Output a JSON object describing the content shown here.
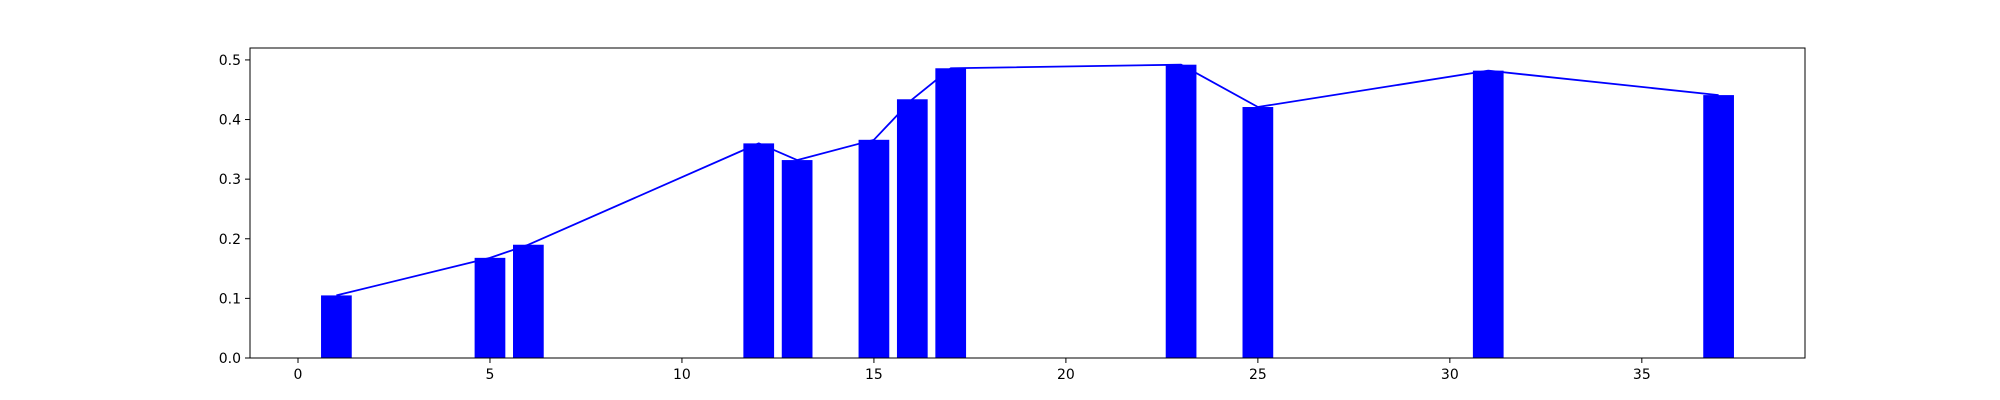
{
  "chart_data": {
    "type": "bar",
    "title": "",
    "xlabel": "",
    "ylabel": "",
    "xlim": [
      -1.25,
      39.25
    ],
    "ylim": [
      0,
      0.52
    ],
    "xticks": [
      0,
      5,
      10,
      15,
      20,
      25,
      30,
      35
    ],
    "xtick_labels": [
      "0",
      "5",
      "10",
      "15",
      "20",
      "25",
      "30",
      "35"
    ],
    "yticks": [
      0.0,
      0.1,
      0.2,
      0.3,
      0.4,
      0.5
    ],
    "ytick_labels": [
      "0.0",
      "0.1",
      "0.2",
      "0.3",
      "0.4",
      "0.5"
    ],
    "grid": false,
    "bar_width": 0.8,
    "x": [
      1,
      5,
      6,
      12,
      13,
      15,
      16,
      17,
      23,
      25,
      31,
      37
    ],
    "values": [
      0.105,
      0.168,
      0.19,
      0.36,
      0.332,
      0.366,
      0.434,
      0.486,
      0.492,
      0.421,
      0.482,
      0.441
    ],
    "line": {
      "x": [
        1,
        5,
        6,
        12,
        13,
        15,
        16,
        17,
        23,
        25,
        31,
        37
      ],
      "values": [
        0.105,
        0.168,
        0.19,
        0.36,
        0.332,
        0.366,
        0.434,
        0.486,
        0.492,
        0.421,
        0.482,
        0.441
      ]
    },
    "colors": {
      "bars": "#0000ff",
      "line": "#0000ff",
      "axes": "#000000"
    }
  }
}
